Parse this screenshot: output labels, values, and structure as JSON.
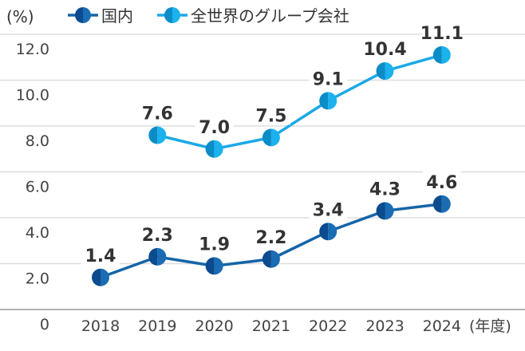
{
  "chart_data": {
    "type": "line",
    "unit_label": "(%)",
    "x_unit_label": "(年度)",
    "categories": [
      "2018",
      "2019",
      "2020",
      "2021",
      "2022",
      "2023",
      "2024"
    ],
    "ylim": [
      0,
      12
    ],
    "yticks": [
      "0",
      "2.0",
      "4.0",
      "6.0",
      "8.0",
      "10.0",
      "12.0"
    ],
    "grid": true,
    "legend_position": "top",
    "series": [
      {
        "name": "国内",
        "values": [
          1.4,
          2.3,
          1.9,
          2.2,
          3.4,
          4.3,
          4.6
        ],
        "labels": [
          "1.4",
          "2.3",
          "1.9",
          "2.2",
          "3.4",
          "4.3",
          "4.6"
        ],
        "line_color": "#1565a8",
        "marker_left": "#0b4b8e",
        "marker_right": "#1a6cb3"
      },
      {
        "name": "全世界のグループ会社",
        "values": [
          null,
          7.6,
          7.0,
          7.5,
          9.1,
          10.4,
          11.1
        ],
        "labels": [
          "",
          "7.6",
          "7.0",
          "7.5",
          "9.1",
          "10.4",
          "11.1"
        ],
        "line_color": "#1ba9e6",
        "marker_left": "#0a8cc6",
        "marker_right": "#1bb2ee"
      }
    ]
  }
}
